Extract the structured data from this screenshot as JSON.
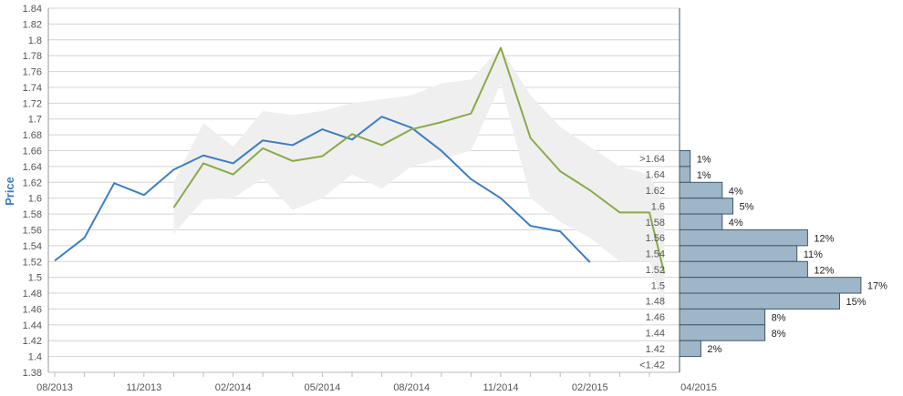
{
  "chart_data": {
    "type": "line",
    "ylabel": "Price",
    "y_axis": {
      "min": 1.38,
      "max": 1.84,
      "step": 0.02,
      "tick_labels": [
        "1.38",
        "1.4",
        "1.42",
        "1.44",
        "1.46",
        "1.48",
        "1.5",
        "1.52",
        "1.54",
        "1.56",
        "1.58",
        "1.6",
        "1.62",
        "1.64",
        "1.66",
        "1.68",
        "1.7",
        "1.72",
        "1.74",
        "1.76",
        "1.78",
        "1.8",
        "1.82",
        "1.84"
      ]
    },
    "x_axis": {
      "tick_labels": [
        {
          "label": "08/2013",
          "month": 0
        },
        {
          "label": "11/2013",
          "month": 3
        },
        {
          "label": "02/2014",
          "month": 6
        },
        {
          "label": "05/2014",
          "month": 9
        },
        {
          "label": "08/2014",
          "month": 12
        },
        {
          "label": "11/2014",
          "month": 15
        },
        {
          "label": "02/2015",
          "month": 18
        },
        {
          "label": "04/2015",
          "month": 20
        }
      ],
      "last_month": 20
    },
    "series": [
      {
        "color": "#3b7dc8",
        "points": [
          [
            0,
            1.521
          ],
          [
            1,
            1.55
          ],
          [
            2,
            1.619
          ],
          [
            3,
            1.604
          ],
          [
            4,
            1.636
          ],
          [
            5,
            1.654
          ],
          [
            6,
            1.644
          ],
          [
            7,
            1.673
          ],
          [
            8,
            1.667
          ],
          [
            9,
            1.687
          ],
          [
            10,
            1.674
          ],
          [
            11,
            1.703
          ],
          [
            12,
            1.689
          ],
          [
            13,
            1.66
          ],
          [
            14,
            1.624
          ],
          [
            15,
            1.6
          ],
          [
            16,
            1.565
          ],
          [
            17,
            1.558
          ],
          [
            18,
            1.519
          ]
        ]
      },
      {
        "color": "#8aaa48",
        "points": [
          [
            4,
            1.588
          ],
          [
            5,
            1.644
          ],
          [
            6,
            1.63
          ],
          [
            7,
            1.663
          ],
          [
            8,
            1.647
          ],
          [
            9,
            1.653
          ],
          [
            10,
            1.681
          ],
          [
            11,
            1.667
          ],
          [
            12,
            1.687
          ],
          [
            13,
            1.696
          ],
          [
            14,
            1.707
          ],
          [
            15,
            1.79
          ],
          [
            16,
            1.676
          ],
          [
            17,
            1.634
          ],
          [
            18,
            1.61
          ],
          [
            19,
            1.582
          ],
          [
            20,
            1.582
          ],
          [
            20.5,
            1.505
          ]
        ]
      }
    ],
    "band": {
      "color": "#efefef",
      "upper": [
        [
          4,
          1.62
        ],
        [
          5,
          1.695
        ],
        [
          6,
          1.665
        ],
        [
          7,
          1.71
        ],
        [
          8,
          1.705
        ],
        [
          9,
          1.71
        ],
        [
          10,
          1.72
        ],
        [
          11,
          1.725
        ],
        [
          12,
          1.73
        ],
        [
          13,
          1.745
        ],
        [
          14,
          1.75
        ],
        [
          15,
          1.79
        ],
        [
          16,
          1.73
        ],
        [
          17,
          1.69
        ],
        [
          18,
          1.665
        ],
        [
          19,
          1.64
        ],
        [
          20,
          1.63
        ],
        [
          20.5,
          1.59
        ]
      ],
      "lower": [
        [
          4,
          1.555
        ],
        [
          5,
          1.598
        ],
        [
          6,
          1.6
        ],
        [
          7,
          1.625
        ],
        [
          8,
          1.585
        ],
        [
          9,
          1.6
        ],
        [
          10,
          1.63
        ],
        [
          11,
          1.612
        ],
        [
          12,
          1.64
        ],
        [
          13,
          1.65
        ],
        [
          14,
          1.66
        ],
        [
          15,
          1.745
        ],
        [
          16,
          1.6
        ],
        [
          17,
          1.57
        ],
        [
          18,
          1.55
        ],
        [
          19,
          1.52
        ],
        [
          20,
          1.52
        ],
        [
          20.5,
          1.46
        ]
      ]
    },
    "distribution": {
      "color": "#9fb6c8",
      "bins": [
        {
          "label": ">1.64",
          "pct": "1%",
          "value": 1
        },
        {
          "label": "1.64",
          "pct": "1%",
          "value": 1
        },
        {
          "label": "1.62",
          "pct": "4%",
          "value": 4
        },
        {
          "label": "1.6",
          "pct": "5%",
          "value": 5
        },
        {
          "label": "1.58",
          "pct": "4%",
          "value": 4
        },
        {
          "label": "1.56",
          "pct": "12%",
          "value": 12
        },
        {
          "label": "1.54",
          "pct": "11%",
          "value": 11
        },
        {
          "label": "1.52",
          "pct": "12%",
          "value": 12
        },
        {
          "label": "1.5",
          "pct": "17%",
          "value": 17
        },
        {
          "label": "1.48",
          "pct": "15%",
          "value": 15
        },
        {
          "label": "1.46",
          "pct": "8%",
          "value": 8
        },
        {
          "label": "1.44",
          "pct": "8%",
          "value": 8
        },
        {
          "label": "1.42",
          "pct": "2%",
          "value": 2
        },
        {
          "label": "<1.42",
          "pct": "",
          "value": 0
        }
      ]
    }
  }
}
